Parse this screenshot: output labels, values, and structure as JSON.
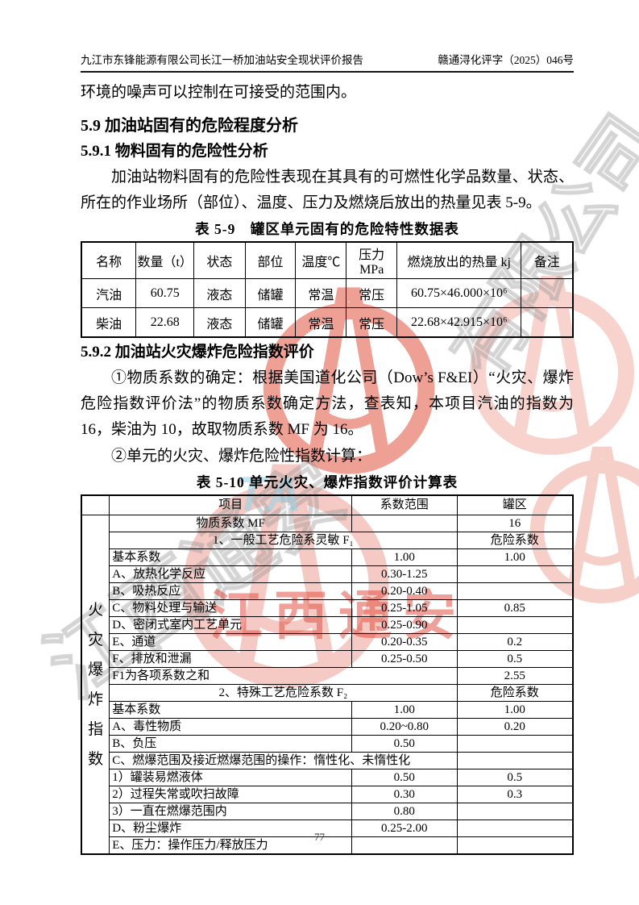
{
  "header": {
    "left": "九江市东锋能源有限公司长江一桥加油站安全现状评价报告",
    "right": "赣通浔化评字（2025）046号"
  },
  "body": {
    "intro": "环境的噪声可以控制在可接受的范围内。",
    "heading_59": "5.9 加油站固有的危险程度分析",
    "heading_591": "5.9.1 物料固有的危险性分析",
    "para_591": "加油站物料固有的危险性表现在其具有的可燃性化学品数量、状态、所在的作业场所（部位）、温度、压力及燃烧后放出的热量见表 5-9。",
    "heading_592": "5.9.2 加油站火灾爆炸危险指数评价",
    "para_592_1": "①物质系数的确定：根据美国道化公司（Dow’s F&EI）“火灾、爆炸危险指数评价法”的物质系数确定方法，查表知，本项目汽油的指数为 16，柴油为 10，故取物质系数 MF 为 16。",
    "para_592_2": "②单元的火灾、爆炸危险性指数计算："
  },
  "table59": {
    "caption": "表 5-9　罐区单元固有的危险特性数据表",
    "headers": [
      "名称",
      "数量（t）",
      "状态",
      "部位",
      "温度℃",
      "压力 MPa",
      "燃烧放出的热量 kj",
      "备注"
    ],
    "rows": [
      [
        "汽油",
        "60.75",
        "液态",
        "储罐",
        "常温",
        "常压",
        "60.75×46.000×10⁶",
        ""
      ],
      [
        "柴油",
        "22.68",
        "液态",
        "储罐",
        "常温",
        "常压",
        "22.68×42.915×10⁶",
        ""
      ]
    ]
  },
  "table510": {
    "caption": "表 5-10 单元火灾、爆炸指数评价计算表",
    "side_label": "火灾爆炸指数",
    "headers": [
      "项目",
      "系数范围",
      "罐区"
    ],
    "rows": [
      {
        "item": "物质系数 MF",
        "range": "",
        "value": "16",
        "align": "center",
        "span": false
      },
      {
        "item": "1、一般工艺危险系灵敏 F₁",
        "range": null,
        "value": "危险系数",
        "align": "center",
        "span": true
      },
      {
        "item": "基本系数",
        "range": "1.00",
        "value": "1.00",
        "align": "left",
        "span": false
      },
      {
        "item": "A、放热化学反应",
        "range": "0.30-1.25",
        "value": "",
        "align": "left",
        "span": false
      },
      {
        "item": "B、吸热反应",
        "range": "0.20-0.40",
        "value": "",
        "align": "left",
        "span": false
      },
      {
        "item": "C、物料处理与输送",
        "range": "0.25-1.05",
        "value": "0.85",
        "align": "left",
        "span": false
      },
      {
        "item": "D、密闭式室内工艺单元",
        "range": "0.25-0.90",
        "value": "",
        "align": "left",
        "span": false
      },
      {
        "item": "E、通道",
        "range": "0.20-0.35",
        "value": "0.2",
        "align": "left",
        "span": false
      },
      {
        "item": "F、排放和泄漏",
        "range": "0.25-0.50",
        "value": "0.5",
        "align": "left",
        "span": false
      },
      {
        "item": "F1为各项系数之和",
        "range": null,
        "value": "2.55",
        "align": "left",
        "span": true
      },
      {
        "item": "2、特殊工艺危险系数 F₂",
        "range": null,
        "value": "危险系数",
        "align": "center",
        "span": true
      },
      {
        "item": "基本系数",
        "range": "1.00",
        "value": "1.00",
        "align": "left",
        "span": false
      },
      {
        "item": "A、毒性物质",
        "range": "0.20~0.80",
        "value": "0.20",
        "align": "left",
        "span": false
      },
      {
        "item": "B、负压",
        "range": "0.50",
        "value": "",
        "align": "left",
        "span": false
      },
      {
        "item": "C、燃爆范围及接近燃爆范围的操作：惰性化、未惰性化",
        "range": null,
        "value": "",
        "align": "left",
        "span": true
      },
      {
        "item": "1）罐装易燃液体",
        "range": "0.50",
        "value": "0.5",
        "align": "left",
        "span": false
      },
      {
        "item": "2）过程失常或吹扫故障",
        "range": "0.30",
        "value": "0.3",
        "align": "left",
        "span": false
      },
      {
        "item": "3）一直在燃爆范围内",
        "range": "0.80",
        "value": "",
        "align": "left",
        "span": false
      },
      {
        "item": "D、粉尘爆炸",
        "range": "0.25-2.00",
        "value": "",
        "align": "left",
        "span": false
      },
      {
        "item": "E、压力：操作压力/释放压力",
        "range": "",
        "value": "",
        "align": "left",
        "span": false
      }
    ]
  },
  "watermark": {
    "red_text": "江西通安",
    "gray_text_left": "江西通安",
    "gray_text_right": "有限公司",
    "cyan_text": "TA",
    "logo_color": "#e2523e",
    "red_text_color": "#e04a3c",
    "gray_color": "#9a9a9a",
    "cyan_color": "#8fd4e8"
  },
  "footer": {
    "page_number": "77"
  }
}
